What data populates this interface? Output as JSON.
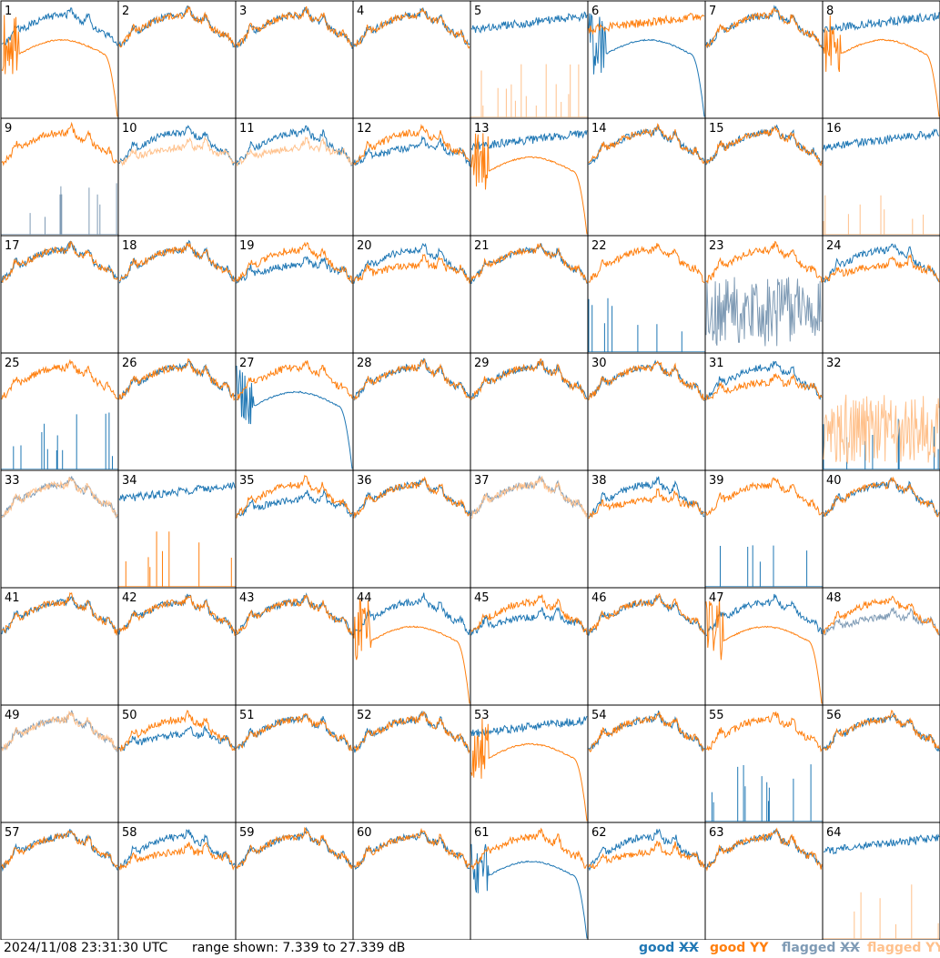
{
  "colors": {
    "good_xx": "#1f77b4",
    "good_yy": "#ff7f0e",
    "flagged_xx": "#7f9bb5",
    "flagged_yy": "#ffc18c",
    "frame": "#000000"
  },
  "footer": {
    "timestamp": "2024/11/08 23:31:30 UTC",
    "range_text": "range shown: 7.339 to 27.339 dB"
  },
  "legend": [
    {
      "status": "good",
      "pol": "XX",
      "color": "#1f77b4"
    },
    {
      "status": "good",
      "pol": "YY",
      "color": "#ff7f0e"
    },
    {
      "status": "flagged",
      "pol": "XX",
      "color": "#7f9bb5"
    },
    {
      "status": "flagged",
      "pol": "YY",
      "color": "#ffc18c"
    }
  ],
  "chart_data": {
    "type": "line",
    "title": "",
    "xlabel": "",
    "ylabel": "",
    "ylim": [
      7.339,
      27.339
    ],
    "units": "dB",
    "layout": "8x8 small multiples",
    "panels": [
      {
        "id": "1",
        "xx": "normal",
        "yy": "drop",
        "xx_flag": false,
        "yy_flag": false
      },
      {
        "id": "2",
        "xx": "normal",
        "yy": "normal",
        "xx_flag": false,
        "yy_flag": false
      },
      {
        "id": "3",
        "xx": "normal",
        "yy": "normal",
        "xx_flag": false,
        "yy_flag": false
      },
      {
        "id": "4",
        "xx": "normal",
        "yy": "normal",
        "xx_flag": false,
        "yy_flag": false
      },
      {
        "id": "5",
        "xx": "high",
        "yy": "spikes",
        "xx_flag": false,
        "yy_flag": true
      },
      {
        "id": "6",
        "xx": "drop",
        "yy": "high",
        "xx_flag": false,
        "yy_flag": false
      },
      {
        "id": "7",
        "xx": "normal",
        "yy": "normal",
        "xx_flag": false,
        "yy_flag": false
      },
      {
        "id": "8",
        "xx": "high",
        "yy": "drop",
        "xx_flag": false,
        "yy_flag": false
      },
      {
        "id": "9",
        "xx": "spikes",
        "yy": "normal",
        "xx_flag": true,
        "yy_flag": false
      },
      {
        "id": "10",
        "xx": "normal",
        "yy": "low",
        "xx_flag": false,
        "yy_flag": true
      },
      {
        "id": "11",
        "xx": "normal",
        "yy": "low",
        "xx_flag": false,
        "yy_flag": true
      },
      {
        "id": "12",
        "xx": "low",
        "yy": "normal",
        "xx_flag": false,
        "yy_flag": false
      },
      {
        "id": "13",
        "xx": "high",
        "yy": "drop",
        "xx_flag": false,
        "yy_flag": false
      },
      {
        "id": "14",
        "xx": "normal",
        "yy": "normal",
        "xx_flag": false,
        "yy_flag": false
      },
      {
        "id": "15",
        "xx": "normal",
        "yy": "normal",
        "xx_flag": false,
        "yy_flag": false
      },
      {
        "id": "16",
        "xx": "high",
        "yy": "spikes",
        "xx_flag": false,
        "yy_flag": true
      },
      {
        "id": "17",
        "xx": "normal",
        "yy": "normal",
        "xx_flag": false,
        "yy_flag": false
      },
      {
        "id": "18",
        "xx": "normal",
        "yy": "normal",
        "xx_flag": false,
        "yy_flag": false
      },
      {
        "id": "19",
        "xx": "low",
        "yy": "normal",
        "xx_flag": false,
        "yy_flag": false
      },
      {
        "id": "20",
        "xx": "normal",
        "yy": "low",
        "xx_flag": false,
        "yy_flag": false
      },
      {
        "id": "21",
        "xx": "normal",
        "yy": "normal",
        "xx_flag": false,
        "yy_flag": false
      },
      {
        "id": "22",
        "xx": "spikes",
        "yy": "normal",
        "xx_flag": false,
        "yy_flag": false
      },
      {
        "id": "23",
        "xx": "noise",
        "yy": "normal",
        "xx_flag": true,
        "yy_flag": false
      },
      {
        "id": "24",
        "xx": "normal",
        "yy": "low",
        "xx_flag": false,
        "yy_flag": false
      },
      {
        "id": "25",
        "xx": "spikes",
        "yy": "normal",
        "xx_flag": false,
        "yy_flag": false
      },
      {
        "id": "26",
        "xx": "normal",
        "yy": "normal",
        "xx_flag": false,
        "yy_flag": false
      },
      {
        "id": "27",
        "xx": "drop",
        "yy": "normal",
        "xx_flag": false,
        "yy_flag": false
      },
      {
        "id": "28",
        "xx": "normal",
        "yy": "normal",
        "xx_flag": false,
        "yy_flag": false
      },
      {
        "id": "29",
        "xx": "normal",
        "yy": "normal",
        "xx_flag": false,
        "yy_flag": false
      },
      {
        "id": "30",
        "xx": "normal",
        "yy": "normal",
        "xx_flag": false,
        "yy_flag": false
      },
      {
        "id": "31",
        "xx": "normal",
        "yy": "low",
        "xx_flag": false,
        "yy_flag": false
      },
      {
        "id": "32",
        "xx": "spikes",
        "yy": "noise",
        "xx_flag": false,
        "yy_flag": true
      },
      {
        "id": "33",
        "xx": "normal",
        "yy": "normal",
        "xx_flag": true,
        "yy_flag": true
      },
      {
        "id": "34",
        "xx": "high",
        "yy": "spikes",
        "xx_flag": false,
        "yy_flag": false
      },
      {
        "id": "35",
        "xx": "low",
        "yy": "normal",
        "xx_flag": false,
        "yy_flag": false
      },
      {
        "id": "36",
        "xx": "normal",
        "yy": "normal",
        "xx_flag": false,
        "yy_flag": false
      },
      {
        "id": "37",
        "xx": "normal",
        "yy": "normal",
        "xx_flag": true,
        "yy_flag": true
      },
      {
        "id": "38",
        "xx": "normal",
        "yy": "low",
        "xx_flag": false,
        "yy_flag": false
      },
      {
        "id": "39",
        "xx": "spikes",
        "yy": "normal",
        "xx_flag": false,
        "yy_flag": false
      },
      {
        "id": "40",
        "xx": "normal",
        "yy": "normal",
        "xx_flag": false,
        "yy_flag": false
      },
      {
        "id": "41",
        "xx": "normal",
        "yy": "normal",
        "xx_flag": false,
        "yy_flag": false
      },
      {
        "id": "42",
        "xx": "normal",
        "yy": "normal",
        "xx_flag": false,
        "yy_flag": false
      },
      {
        "id": "43",
        "xx": "normal",
        "yy": "normal",
        "xx_flag": false,
        "yy_flag": false
      },
      {
        "id": "44",
        "xx": "normal",
        "yy": "drop",
        "xx_flag": false,
        "yy_flag": false
      },
      {
        "id": "45",
        "xx": "low",
        "yy": "normal",
        "xx_flag": false,
        "yy_flag": false
      },
      {
        "id": "46",
        "xx": "normal",
        "yy": "normal",
        "xx_flag": false,
        "yy_flag": false
      },
      {
        "id": "47",
        "xx": "normal",
        "yy": "drop",
        "xx_flag": false,
        "yy_flag": false
      },
      {
        "id": "48",
        "xx": "low",
        "yy": "normal",
        "xx_flag": true,
        "yy_flag": false
      },
      {
        "id": "49",
        "xx": "normal",
        "yy": "normal",
        "xx_flag": true,
        "yy_flag": true
      },
      {
        "id": "50",
        "xx": "low",
        "yy": "normal",
        "xx_flag": false,
        "yy_flag": false
      },
      {
        "id": "51",
        "xx": "normal",
        "yy": "normal",
        "xx_flag": false,
        "yy_flag": false
      },
      {
        "id": "52",
        "xx": "normal",
        "yy": "normal",
        "xx_flag": false,
        "yy_flag": false
      },
      {
        "id": "53",
        "xx": "high",
        "yy": "drop",
        "xx_flag": false,
        "yy_flag": false
      },
      {
        "id": "54",
        "xx": "normal",
        "yy": "normal",
        "xx_flag": false,
        "yy_flag": false
      },
      {
        "id": "55",
        "xx": "spikes",
        "yy": "normal",
        "xx_flag": false,
        "yy_flag": false
      },
      {
        "id": "56",
        "xx": "normal",
        "yy": "normal",
        "xx_flag": false,
        "yy_flag": false
      },
      {
        "id": "57",
        "xx": "normal",
        "yy": "normal",
        "xx_flag": false,
        "yy_flag": false
      },
      {
        "id": "58",
        "xx": "normal",
        "yy": "low",
        "xx_flag": false,
        "yy_flag": false
      },
      {
        "id": "59",
        "xx": "normal",
        "yy": "normal",
        "xx_flag": false,
        "yy_flag": false
      },
      {
        "id": "60",
        "xx": "normal",
        "yy": "normal",
        "xx_flag": false,
        "yy_flag": false
      },
      {
        "id": "61",
        "xx": "drop",
        "yy": "normal",
        "xx_flag": false,
        "yy_flag": false
      },
      {
        "id": "62",
        "xx": "normal",
        "yy": "low",
        "xx_flag": false,
        "yy_flag": false
      },
      {
        "id": "63",
        "xx": "normal",
        "yy": "normal",
        "xx_flag": false,
        "yy_flag": false
      },
      {
        "id": "64",
        "xx": "high",
        "yy": "spikes",
        "xx_flag": false,
        "yy_flag": true
      }
    ]
  }
}
